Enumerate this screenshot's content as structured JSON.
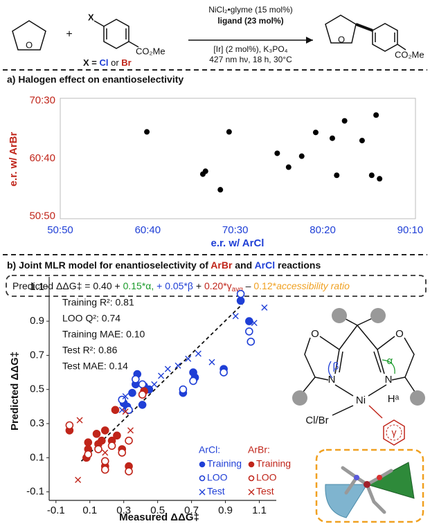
{
  "scheme": {
    "x_label": "X",
    "plus": "+",
    "ester": "CO₂Me",
    "product_ester": "CO₂Me",
    "x_def_parts": [
      "X = ",
      "Cl",
      " or ",
      "Br"
    ],
    "conditions_above": [
      "NiCl₂•glyme (15 mol%)",
      "ligand (23 mol%)"
    ],
    "conditions_below": [
      "[Ir] (2 mol%), K₃PO₄",
      "427 nm hν, 18 h, 30°C"
    ]
  },
  "panel_b_title_parts": [
    "b) Joint MLR model for enantioselectivity of ",
    "ArBr",
    " and ",
    "ArCl",
    " reactions"
  ],
  "equation_parts": [
    "Predicted ΔΔG‡ = 0.40 + ",
    "0.15*α, ",
    "+ 0.05*β",
    " + ",
    "0.20*γ",
    "avg",
    " – ",
    "0.12*",
    "accessibility ratio"
  ],
  "ligand_labels": {
    "o_left": "O",
    "o_right": "O",
    "n_left": "N",
    "n_right": "N",
    "ni": "Ni",
    "h": "Hᵃ",
    "halide": "Cl/Br",
    "alpha": "α",
    "beta": "β",
    "gamma": "γ"
  },
  "chart_data": [
    {
      "type": "scatter",
      "title": "a) Halogen effect on enantioselectivity",
      "xlabel": "e.r. w/ ArCl",
      "ylabel": "e.r. w/ ArBr",
      "color": "#000000",
      "x": [
        59.9,
        66.3,
        66.6,
        68.3,
        69.3,
        74.8,
        76.1,
        77.6,
        79.2,
        81.1,
        81.6,
        82.5,
        84.5,
        85.6,
        86.1,
        86.5
      ],
      "y": [
        64.6,
        57.3,
        57.8,
        54.6,
        64.6,
        60.9,
        58.5,
        60.4,
        64.5,
        63.5,
        57.1,
        66.5,
        63.1,
        57.1,
        67.5,
        56.5
      ],
      "xlim": [
        50,
        90.6
      ],
      "ylim": [
        49.6,
        70.4
      ],
      "xticks": [
        {
          "value": 50,
          "label": "50:50"
        },
        {
          "value": 60,
          "label": "60:40"
        },
        {
          "value": 70,
          "label": "70:30"
        },
        {
          "value": 80,
          "label": "80:20"
        },
        {
          "value": 90,
          "label": "90:10"
        }
      ],
      "yticks": [
        {
          "value": 50,
          "label": "50:50"
        },
        {
          "value": 60,
          "label": "60:40"
        },
        {
          "value": 70,
          "label": "70:30"
        }
      ],
      "xtick_color": "#1f3fd6",
      "ytick_color": "#c0251a"
    },
    {
      "type": "scatter",
      "xlabel": "Measured ΔΔG‡",
      "ylabel": "Predicted ΔΔG‡",
      "xlim": [
        -0.14,
        1.2
      ],
      "ylim": [
        -0.15,
        1.16
      ],
      "xticks": [
        -0.1,
        0.1,
        0.3,
        0.5,
        0.7,
        0.9,
        1.1
      ],
      "yticks": [
        -0.1,
        0.1,
        0.3,
        0.5,
        0.7,
        0.9,
        1.1
      ],
      "annotations": [
        "Training R²: 0.81",
        "LOO Q²: 0.74",
        "Training MAE: 0.10",
        "Test R²: 0.86",
        "Test MAE: 0.14"
      ],
      "legend_groups": [
        "ArCl:",
        "ArBr:"
      ],
      "trend_line": {
        "x": [
          0.05,
          1.0
        ],
        "y": [
          0.08,
          1.0
        ]
      },
      "series": [
        {
          "name": "Training",
          "color": "#1f3fd6",
          "marker": "filled",
          "x": [
            0.3,
            0.32,
            0.35,
            0.37,
            0.38,
            0.41,
            0.42,
            0.45,
            0.65,
            0.71,
            0.72,
            0.89,
            0.99,
            1.04
          ],
          "y": [
            0.42,
            0.4,
            0.48,
            0.53,
            0.59,
            0.41,
            0.52,
            0.5,
            0.48,
            0.6,
            0.57,
            0.62,
            1.02,
            0.9
          ]
        },
        {
          "name": "LOO",
          "color": "#1f3fd6",
          "marker": "open",
          "x": [
            0.29,
            0.33,
            0.37,
            0.41,
            0.65,
            0.71,
            0.89,
            0.99,
            1.04,
            1.05
          ],
          "y": [
            0.44,
            0.38,
            0.56,
            0.53,
            0.5,
            0.55,
            0.6,
            1.06,
            0.84,
            0.78
          ]
        },
        {
          "name": "Test",
          "color": "#1f3fd6",
          "marker": "x",
          "x": [
            0.29,
            0.31,
            0.48,
            0.52,
            0.56,
            0.62,
            0.68,
            0.74,
            0.82,
            0.96,
            1.07,
            1.13
          ],
          "y": [
            0.38,
            0.46,
            0.53,
            0.58,
            0.62,
            0.64,
            0.68,
            0.71,
            0.66,
            0.93,
            0.89,
            0.98
          ]
        },
        {
          "name": "Training",
          "color": "#c0251a",
          "marker": "filled",
          "x": [
            -0.02,
            0.09,
            0.09,
            0.15,
            0.17,
            0.19,
            0.19,
            0.23,
            0.25,
            0.26,
            0.29,
            0.33,
            0.42,
            0.08,
            0.14
          ],
          "y": [
            0.26,
            0.19,
            0.15,
            0.18,
            0.2,
            0.26,
            0.05,
            0.2,
            0.38,
            0.23,
            0.15,
            0.05,
            0.49,
            0.1,
            0.24
          ]
        },
        {
          "name": "LOO",
          "color": "#c0251a",
          "marker": "open",
          "x": [
            -0.02,
            0.09,
            0.15,
            0.19,
            0.19,
            0.23,
            0.29,
            0.33,
            0.33,
            0.41
          ],
          "y": [
            0.29,
            0.12,
            0.15,
            0.03,
            0.08,
            0.17,
            0.13,
            0.02,
            0.2,
            0.47
          ]
        },
        {
          "name": "Test",
          "color": "#c0251a",
          "marker": "x",
          "x": [
            0.04,
            0.03,
            0.34,
            0.31,
            0.19
          ],
          "y": [
            0.32,
            -0.03,
            0.26,
            0.37,
            0.13
          ]
        }
      ]
    }
  ]
}
